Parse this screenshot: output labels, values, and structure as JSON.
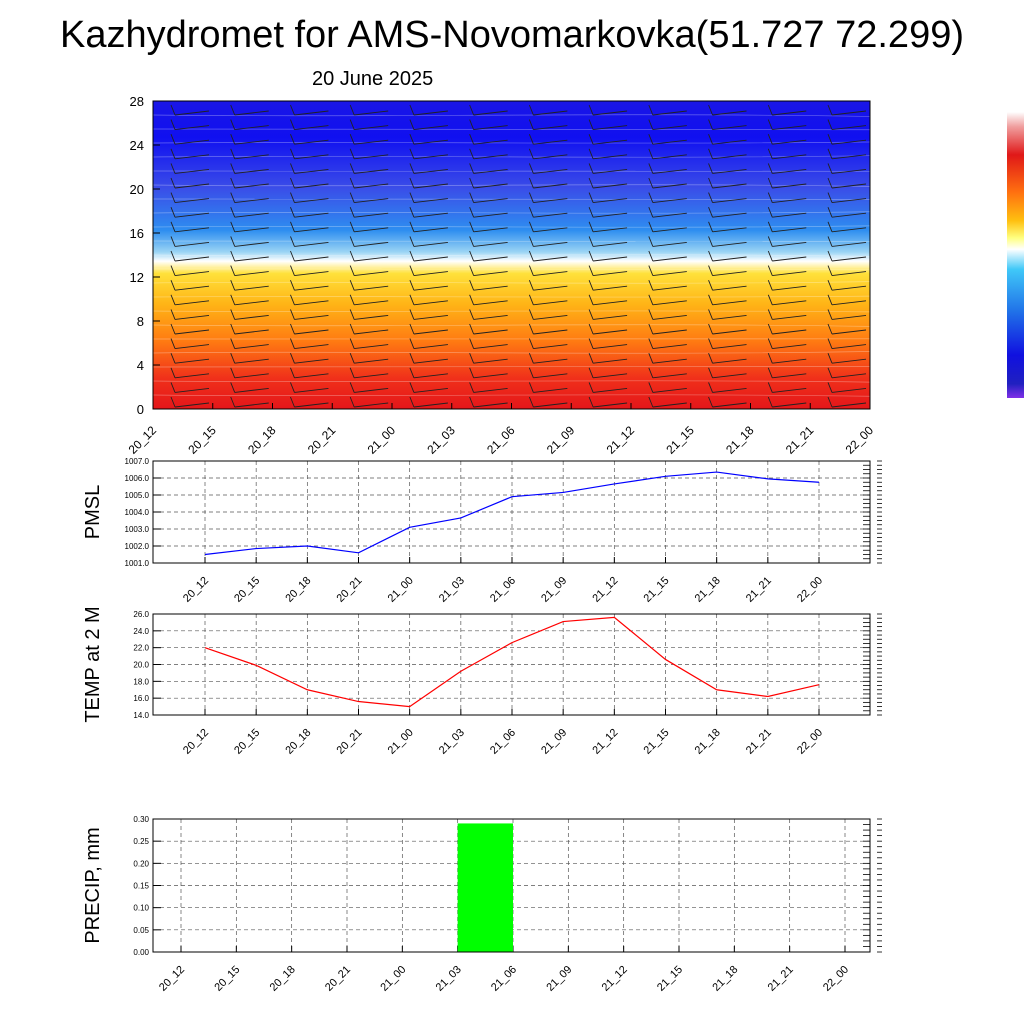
{
  "title": "Kazhydromet for AMS-Novomarkovka(51.727 72.299)",
  "subtitle": "20 June 2025",
  "colors": {
    "pmsl_line": "#0000ff",
    "temp_line": "#ff0000",
    "precip_bar": "#00ff00",
    "cross_section_top": "#1010e8",
    "cross_section_bottom": "#e81010"
  },
  "chart_data": [
    {
      "type": "heatmap",
      "name": "cross-section",
      "x": [
        "20_12",
        "20_15",
        "20_18",
        "20_21",
        "21_00",
        "21_03",
        "21_06",
        "21_09",
        "21_12",
        "21_15",
        "21_18",
        "21_21",
        "22_00"
      ],
      "yticks": [
        "0",
        "4",
        "8",
        "12",
        "16",
        "20",
        "24",
        "28"
      ],
      "ylim": [
        0,
        28
      ],
      "colorbar": "blue-to-red",
      "overlay": "wind barbs"
    },
    {
      "type": "line",
      "name": "pmsl",
      "ylabel": "PMSL",
      "x": [
        "20_12",
        "20_15",
        "20_18",
        "20_21",
        "21_00",
        "21_03",
        "21_06",
        "21_09",
        "21_12",
        "21_15",
        "21_18",
        "21_21",
        "22_00"
      ],
      "values": [
        1001.5,
        1001.85,
        1002.0,
        1001.6,
        1003.1,
        1003.65,
        1004.9,
        1005.15,
        1005.65,
        1006.1,
        1006.35,
        1005.95,
        1005.75
      ],
      "ylim": [
        1001.0,
        1007.0
      ],
      "yticks": [
        "1001.0",
        "1002.0",
        "1003.0",
        "1004.0",
        "1005.0",
        "1006.0",
        "1007.0"
      ],
      "grid": true
    },
    {
      "type": "line",
      "name": "temp",
      "ylabel": "TEMP at 2 M",
      "x": [
        "20_12",
        "20_15",
        "20_18",
        "20_21",
        "21_00",
        "21_03",
        "21_06",
        "21_09",
        "21_12",
        "21_15",
        "21_18",
        "21_21",
        "22_00"
      ],
      "values": [
        22.0,
        19.9,
        17.0,
        15.6,
        15.0,
        19.2,
        22.6,
        25.1,
        25.6,
        20.6,
        17.0,
        16.2,
        17.6
      ],
      "ylim": [
        14.0,
        26.0
      ],
      "yticks": [
        "14.0",
        "16.0",
        "18.0",
        "20.0",
        "22.0",
        "24.0",
        "26.0"
      ],
      "grid": true
    },
    {
      "type": "bar",
      "name": "precip",
      "ylabel": "PRECIP, mm",
      "categories": [
        "20_12",
        "20_15",
        "20_18",
        "20_21",
        "21_00",
        "21_03",
        "21_06",
        "21_09",
        "21_12",
        "21_15",
        "21_18",
        "21_21",
        "22_00"
      ],
      "values": [
        0,
        0,
        0,
        0,
        0,
        0,
        0.29,
        0,
        0,
        0,
        0,
        0,
        0
      ],
      "ylim": [
        0,
        0.3
      ],
      "yticks": [
        "0.00",
        "0.05",
        "0.10",
        "0.15",
        "0.20",
        "0.25",
        "0.30"
      ],
      "grid": true
    }
  ]
}
